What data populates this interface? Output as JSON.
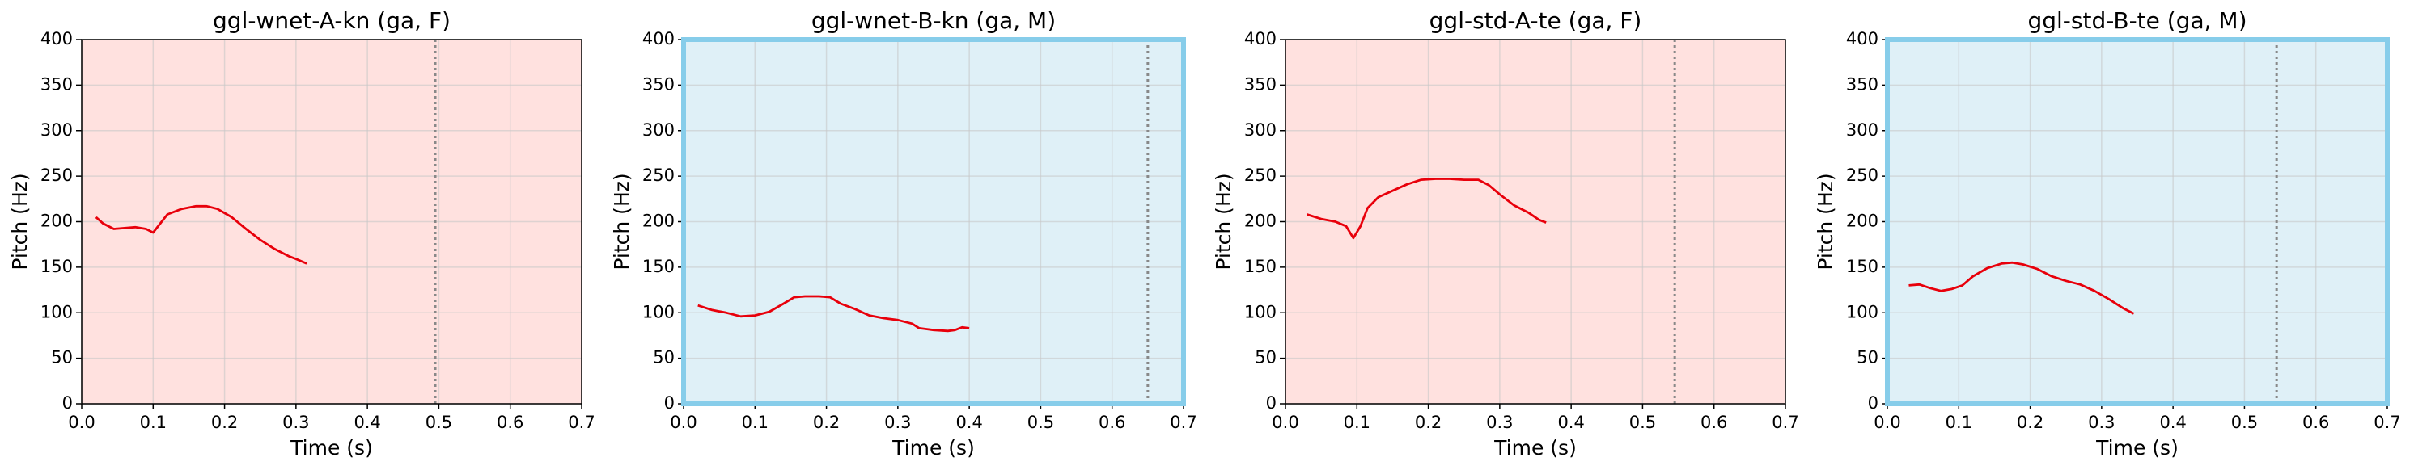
{
  "chart_data": [
    {
      "type": "line",
      "title": "ggl-wnet-A-kn (ga, F)",
      "x_label": "Time (s)",
      "y_label": "Pitch (Hz)",
      "x": [
        0.02,
        0.03,
        0.045,
        0.06,
        0.075,
        0.09,
        0.1,
        0.11,
        0.12,
        0.14,
        0.16,
        0.175,
        0.19,
        0.21,
        0.23,
        0.25,
        0.27,
        0.29,
        0.3,
        0.315
      ],
      "values": [
        205,
        198,
        192,
        193,
        194,
        192,
        188,
        198,
        208,
        214,
        217,
        217,
        214,
        205,
        192,
        180,
        170,
        162,
        159,
        154
      ],
      "color": "#e8000b",
      "background": "#ffe1df",
      "border": null,
      "vline": 0.495,
      "vline_color": "#888888",
      "xlim": [
        0,
        0.7
      ],
      "ylim": [
        0,
        400
      ],
      "xticks": [
        {
          "value": 0,
          "label": "0.0"
        },
        0.1,
        0.2,
        0.3,
        0.4,
        0.5,
        0.6,
        0.7
      ],
      "yticks": [
        0,
        50,
        100,
        150,
        200,
        250,
        300,
        350,
        400
      ],
      "grid": true
    },
    {
      "type": "line",
      "title": "ggl-wnet-B-kn (ga, M)",
      "x_label": "Time (s)",
      "y_label": "Pitch (Hz)",
      "x": [
        0.02,
        0.04,
        0.06,
        0.08,
        0.1,
        0.12,
        0.14,
        0.155,
        0.17,
        0.19,
        0.205,
        0.22,
        0.24,
        0.26,
        0.28,
        0.3,
        0.32,
        0.33,
        0.35,
        0.37,
        0.38,
        0.39,
        0.4
      ],
      "values": [
        108,
        103,
        100,
        96,
        97,
        101,
        110,
        117,
        118,
        118,
        117,
        110,
        104,
        97,
        94,
        92,
        88,
        83,
        81,
        80,
        81,
        84,
        83
      ],
      "color": "#e8000b",
      "background": "#dff0f7",
      "border": "#87cdea",
      "vline": 0.65,
      "vline_color": "#888888",
      "xlim": [
        0,
        0.7
      ],
      "ylim": [
        0,
        400
      ],
      "xticks": [
        {
          "value": 0,
          "label": "0.0"
        },
        0.1,
        0.2,
        0.3,
        0.4,
        0.5,
        0.6,
        0.7
      ],
      "yticks": [
        0,
        50,
        100,
        150,
        200,
        250,
        300,
        350,
        400
      ],
      "grid": true
    },
    {
      "type": "line",
      "title": "ggl-std-A-te (ga, F)",
      "x_label": "Time (s)",
      "y_label": "Pitch (Hz)",
      "x": [
        0.03,
        0.05,
        0.07,
        0.085,
        0.095,
        0.105,
        0.115,
        0.13,
        0.15,
        0.17,
        0.19,
        0.21,
        0.23,
        0.25,
        0.27,
        0.285,
        0.3,
        0.32,
        0.34,
        0.355,
        0.365
      ],
      "values": [
        208,
        203,
        200,
        195,
        182,
        195,
        215,
        227,
        234,
        241,
        246,
        247,
        247,
        246,
        246,
        240,
        230,
        218,
        210,
        202,
        199
      ],
      "color": "#e8000b",
      "background": "#ffe1df",
      "border": null,
      "vline": 0.545,
      "vline_color": "#888888",
      "xlim": [
        0,
        0.7
      ],
      "ylim": [
        0,
        400
      ],
      "xticks": [
        {
          "value": 0,
          "label": "0.0"
        },
        0.1,
        0.2,
        0.3,
        0.4,
        0.5,
        0.6,
        0.7
      ],
      "yticks": [
        0,
        50,
        100,
        150,
        200,
        250,
        300,
        350,
        400
      ],
      "grid": true
    },
    {
      "type": "line",
      "title": "ggl-std-B-te (ga, M)",
      "x_label": "Time (s)",
      "y_label": "Pitch (Hz)",
      "x": [
        0.03,
        0.045,
        0.06,
        0.075,
        0.09,
        0.105,
        0.12,
        0.14,
        0.16,
        0.175,
        0.19,
        0.21,
        0.23,
        0.25,
        0.27,
        0.29,
        0.31,
        0.33,
        0.345
      ],
      "values": [
        130,
        131,
        127,
        124,
        126,
        130,
        140,
        149,
        154,
        155,
        153,
        148,
        140,
        135,
        131,
        124,
        115,
        105,
        99
      ],
      "color": "#e8000b",
      "background": "#dff0f7",
      "border": "#87cdea",
      "vline": 0.545,
      "vline_color": "#888888",
      "xlim": [
        0,
        0.7
      ],
      "ylim": [
        0,
        400
      ],
      "xticks": [
        {
          "value": 0,
          "label": "0.0"
        },
        0.1,
        0.2,
        0.3,
        0.4,
        0.5,
        0.6,
        0.7
      ],
      "yticks": [
        0,
        50,
        100,
        150,
        200,
        250,
        300,
        350,
        400
      ],
      "grid": true
    }
  ]
}
